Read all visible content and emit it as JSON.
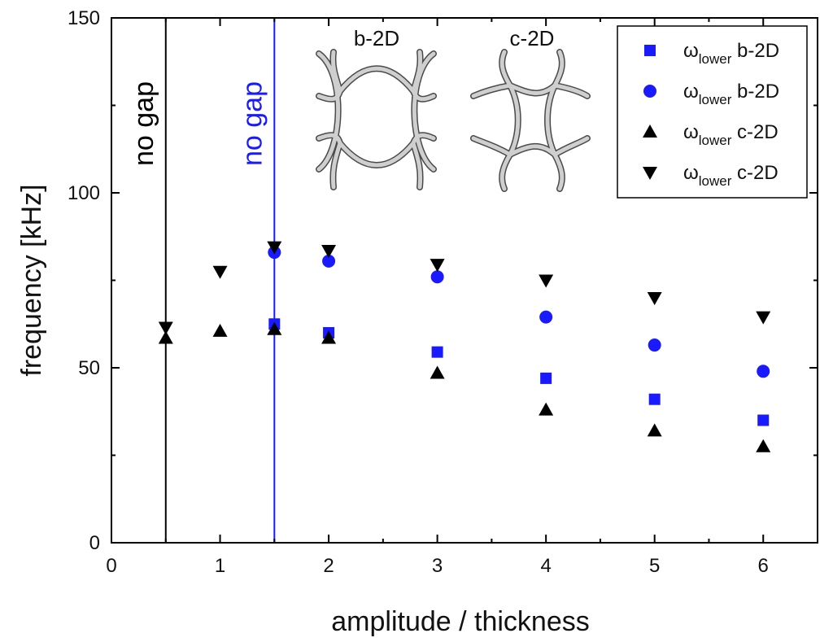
{
  "chart_data": {
    "type": "scatter",
    "xlabel": "amplitude / thickness",
    "ylabel": "frequency [kHz]",
    "xlim": [
      0,
      6.5
    ],
    "ylim": [
      0,
      150
    ],
    "x_ticks": [
      0,
      1,
      2,
      3,
      4,
      5,
      6
    ],
    "y_ticks": [
      0,
      50,
      100,
      150
    ],
    "x_tick_labels": [
      "0",
      "1",
      "2",
      "3",
      "4",
      "5",
      "6"
    ],
    "y_tick_labels": [
      "0",
      "50",
      "100",
      "150"
    ],
    "grid": false,
    "legend_position": "top-right",
    "series": [
      {
        "name_main": "ω",
        "name_sub": "lower",
        "name_suffix": "b-2D",
        "marker": "square",
        "color": "#1a1aff",
        "x": [
          1.5,
          2,
          3,
          4,
          5,
          6
        ],
        "y": [
          62.5,
          60,
          54.5,
          47,
          41,
          35
        ]
      },
      {
        "name_main": "ω",
        "name_sub": "lower",
        "name_suffix": "b-2D",
        "marker": "circle",
        "color": "#1a1aff",
        "x": [
          1.5,
          2,
          3,
          4,
          5,
          6
        ],
        "y": [
          83,
          80.5,
          76,
          64.5,
          56.5,
          49
        ]
      },
      {
        "name_main": "ω",
        "name_sub": "lower",
        "name_suffix": "c-2D",
        "marker": "triangle-up",
        "color": "#000000",
        "x": [
          0.5,
          1,
          1.5,
          2,
          3,
          4,
          5,
          6
        ],
        "y": [
          58.5,
          60.5,
          61,
          58.5,
          48.5,
          38,
          32,
          27.5
        ]
      },
      {
        "name_main": "ω",
        "name_sub": "lower",
        "name_suffix": "c-2D",
        "marker": "triangle-down",
        "color": "#000000",
        "x": [
          0.5,
          1,
          1.5,
          2,
          3,
          4,
          5,
          6
        ],
        "y": [
          61.5,
          77.5,
          84.5,
          83.5,
          79.5,
          75,
          70,
          64.5
        ]
      }
    ],
    "vertical_lines": [
      {
        "x": 0.5,
        "color": "#000000",
        "label": "no gap"
      },
      {
        "x": 1.5,
        "color": "#1a1aff",
        "label": "no gap"
      }
    ],
    "insets": [
      {
        "label": "b-2D",
        "icon": "b-2d-lattice-icon"
      },
      {
        "label": "c-2D",
        "icon": "c-2d-lattice-icon"
      }
    ]
  }
}
